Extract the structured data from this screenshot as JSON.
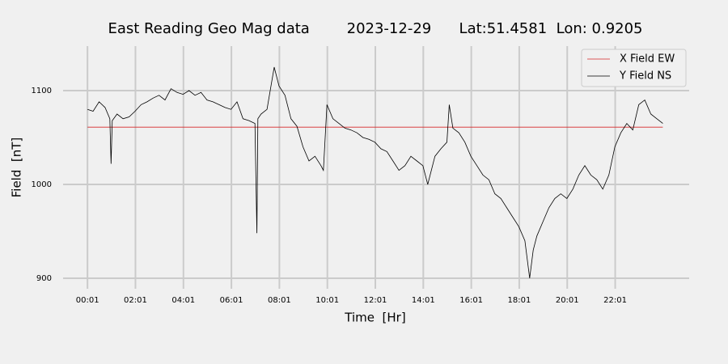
{
  "chart_data": {
    "type": "line",
    "title": "East Reading Geo Mag data        2023-12-29      Lat:51.4581  Lon: 0.9205",
    "xlabel": "Time  [Hr]",
    "ylabel": "Field  [nT]",
    "xlim": [
      -1.0,
      25.1
    ],
    "ylim": [
      888.8,
      1147.4
    ],
    "xticks": [
      {
        "value": 0.0167,
        "label": "00:01"
      },
      {
        "value": 2.0167,
        "label": "02:01"
      },
      {
        "value": 4.0167,
        "label": "04:01"
      },
      {
        "value": 6.0167,
        "label": "06:01"
      },
      {
        "value": 8.0167,
        "label": "08:01"
      },
      {
        "value": 10.0167,
        "label": "10:01"
      },
      {
        "value": 12.0167,
        "label": "12:01"
      },
      {
        "value": 14.0167,
        "label": "14:01"
      },
      {
        "value": 16.0167,
        "label": "16:01"
      },
      {
        "value": 18.0167,
        "label": "18:01"
      },
      {
        "value": 20.0167,
        "label": "20:01"
      },
      {
        "value": 22.0167,
        "label": "22:01"
      }
    ],
    "yticks": [
      900,
      1000,
      1100
    ],
    "grid": true,
    "legend": "upper right",
    "series": [
      {
        "name": "X Field EW",
        "color": "#d62728",
        "x": [
          0.0167,
          24.0
        ],
        "values": [
          1061,
          1061
        ]
      },
      {
        "name": "Y Field NS",
        "color": "#000000",
        "x": [
          0.0167,
          0.25,
          0.5,
          0.75,
          0.95,
          1.0,
          1.05,
          1.25,
          1.5,
          1.75,
          2.0,
          2.25,
          2.5,
          2.75,
          3.0,
          3.25,
          3.5,
          3.75,
          4.0,
          4.25,
          4.5,
          4.75,
          5.0,
          5.25,
          5.5,
          5.75,
          6.0,
          6.25,
          6.5,
          6.75,
          7.0,
          7.08,
          7.12,
          7.25,
          7.5,
          7.7,
          7.8,
          8.0,
          8.25,
          8.5,
          8.75,
          9.0,
          9.25,
          9.5,
          9.75,
          9.85,
          10.0,
          10.25,
          10.5,
          10.75,
          11.0,
          11.25,
          11.5,
          11.75,
          12.0,
          12.25,
          12.5,
          12.75,
          13.0,
          13.25,
          13.5,
          13.75,
          14.0,
          14.2,
          14.5,
          14.75,
          15.0,
          15.1,
          15.25,
          15.5,
          15.75,
          16.0,
          16.25,
          16.5,
          16.75,
          17.0,
          17.25,
          17.5,
          17.75,
          18.0,
          18.25,
          18.45,
          18.6,
          18.75,
          19.0,
          19.25,
          19.5,
          19.75,
          20.0,
          20.25,
          20.5,
          20.75,
          21.0,
          21.25,
          21.5,
          21.75,
          22.0,
          22.25,
          22.5,
          22.75,
          23.0,
          23.25,
          23.5,
          23.75,
          24.0
        ],
        "values": [
          1080,
          1078,
          1088,
          1082,
          1070,
          1022,
          1068,
          1075,
          1070,
          1072,
          1078,
          1085,
          1088,
          1092,
          1095,
          1090,
          1102,
          1098,
          1096,
          1100,
          1095,
          1098,
          1090,
          1088,
          1085,
          1082,
          1080,
          1088,
          1070,
          1068,
          1065,
          948,
          1070,
          1075,
          1080,
          1110,
          1125,
          1105,
          1095,
          1070,
          1062,
          1040,
          1025,
          1030,
          1020,
          1015,
          1085,
          1070,
          1065,
          1060,
          1058,
          1055,
          1050,
          1048,
          1045,
          1038,
          1035,
          1025,
          1015,
          1020,
          1030,
          1025,
          1020,
          1000,
          1030,
          1038,
          1045,
          1085,
          1060,
          1055,
          1045,
          1030,
          1020,
          1010,
          1005,
          990,
          985,
          975,
          965,
          955,
          940,
          900,
          930,
          945,
          960,
          975,
          985,
          990,
          985,
          995,
          1010,
          1020,
          1010,
          1005,
          995,
          1010,
          1040,
          1055,
          1065,
          1058,
          1085,
          1090,
          1075,
          1070,
          1065
        ]
      }
    ]
  }
}
